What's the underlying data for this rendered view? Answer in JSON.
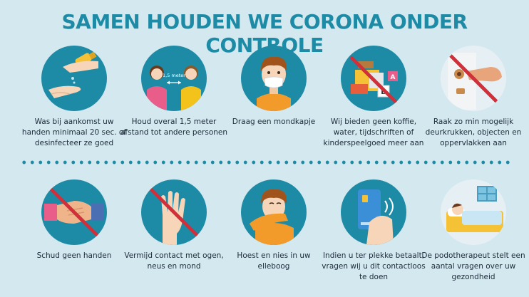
{
  "title": "SAMEN HOUDEN WE CORONA ONDER CONTROLE",
  "colors": {
    "teal": "#1e8ba6",
    "background": "#d3e8ef",
    "prohibition": "#d32f3a"
  },
  "row1": [
    {
      "icon": "hand-sanitizer-icon",
      "caption": "Was bij aankomst uw handen minimaal 20 sec. of desinfecteer ze goed"
    },
    {
      "icon": "social-distance-icon",
      "distance_label": "1,5 meter",
      "caption": "Houd overal 1,5 meter afstand tot andere personen"
    },
    {
      "icon": "face-mask-icon",
      "caption": "Draag een mondkapje"
    },
    {
      "icon": "no-coffee-toys-icon",
      "caption": "Wij bieden geen koffie, water, tijdschriften of kinderspeelgoed meer aan"
    },
    {
      "icon": "no-doorknob-icon",
      "caption": "Raak zo min mogelijk deurkrukken, objecten en oppervlakken aan"
    }
  ],
  "row2": [
    {
      "icon": "no-handshake-icon",
      "caption": "Schud geen handen"
    },
    {
      "icon": "no-face-touch-icon",
      "caption": "Vermijd contact met ogen, neus en mond"
    },
    {
      "icon": "cough-elbow-icon",
      "caption": "Hoest en nies in uw elleboog"
    },
    {
      "icon": "contactless-card-icon",
      "caption": "Indien u ter plekke betaalt, vragen wij u dit contactloos te doen"
    },
    {
      "icon": "sick-in-bed-icon",
      "caption": "De podotherapeut stelt een aantal vragen over uw gezondheid"
    }
  ]
}
